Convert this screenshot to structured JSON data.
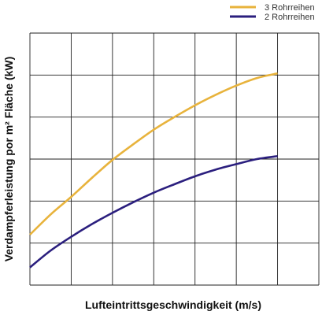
{
  "chart_data": {
    "type": "line",
    "title": "",
    "xlabel": "Lufteintrittsgeschwindigkeit (m/s)",
    "ylabel": "Verdampferleistung por m² Fläche (kW)",
    "xlim": [
      0,
      7
    ],
    "ylim": [
      0,
      6
    ],
    "grid": true,
    "legend_position": "top-right",
    "series": [
      {
        "name": "3 Rohrreihen",
        "color": "#e8b33c",
        "x": [
          0.0,
          0.5,
          1.0,
          1.5,
          2.0,
          2.5,
          3.0,
          3.5,
          4.0,
          4.5,
          5.0,
          5.5,
          6.0
        ],
        "y": [
          1.2,
          1.68,
          2.1,
          2.55,
          2.98,
          3.35,
          3.7,
          4.0,
          4.28,
          4.53,
          4.75,
          4.93,
          5.04
        ]
      },
      {
        "name": "2 Rohrreihen",
        "color": "#2b1f7e",
        "x": [
          0.0,
          0.5,
          1.0,
          1.5,
          2.0,
          2.5,
          3.0,
          3.5,
          4.0,
          4.5,
          5.0,
          5.5,
          6.0
        ],
        "y": [
          0.42,
          0.82,
          1.15,
          1.45,
          1.72,
          1.97,
          2.2,
          2.4,
          2.59,
          2.75,
          2.88,
          3.0,
          3.07
        ]
      }
    ]
  }
}
